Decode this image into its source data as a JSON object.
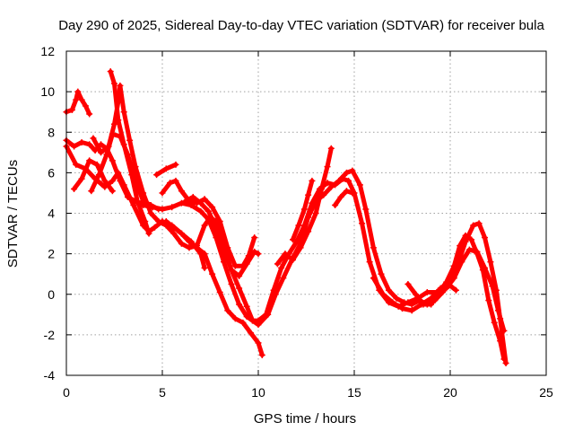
{
  "chart_data": {
    "type": "scatter",
    "title": "Day 290 of 2025, Sidereal Day-to-day VTEC variation (SDTVAR) for receiver bula",
    "xlabel": "GPS time / hours",
    "ylabel": "SDTVAR / TECUs",
    "xlim": [
      0,
      25
    ],
    "ylim": [
      -4,
      12
    ],
    "xticks": [
      0,
      5,
      10,
      15,
      20,
      25
    ],
    "yticks": [
      -4,
      -2,
      0,
      2,
      4,
      6,
      8,
      10,
      12
    ],
    "grid": true,
    "marker": "+",
    "color": "#ff0000",
    "series": [
      {
        "name": "s1",
        "points": [
          [
            0.0,
            9.0
          ],
          [
            0.3,
            9.1
          ],
          [
            0.5,
            9.6
          ],
          [
            0.6,
            10.0
          ],
          [
            0.8,
            9.6
          ],
          [
            1.0,
            9.3
          ],
          [
            1.2,
            8.9
          ]
        ]
      },
      {
        "name": "s2",
        "points": [
          [
            0.0,
            7.6
          ],
          [
            0.4,
            7.3
          ],
          [
            0.8,
            7.5
          ],
          [
            1.2,
            7.4
          ],
          [
            1.5,
            7.1
          ],
          [
            1.8,
            7.4
          ],
          [
            2.1,
            7.2
          ],
          [
            2.4,
            6.6
          ],
          [
            2.8,
            5.6
          ],
          [
            3.2,
            4.8
          ],
          [
            3.6,
            4.6
          ],
          [
            4.0,
            4.4
          ],
          [
            4.5,
            4.3
          ],
          [
            5.0,
            4.2
          ],
          [
            5.5,
            4.3
          ],
          [
            6.0,
            4.5
          ],
          [
            6.5,
            4.4
          ],
          [
            7.0,
            4.1
          ],
          [
            7.4,
            3.7
          ],
          [
            7.8,
            2.8
          ],
          [
            8.2,
            1.6
          ],
          [
            8.6,
            0.5
          ],
          [
            9.0,
            -0.5
          ],
          [
            9.4,
            -1.1
          ],
          [
            9.7,
            -1.3
          ],
          [
            10.0,
            -1.3
          ],
          [
            10.4,
            -1.0
          ],
          [
            10.8,
            0.2
          ],
          [
            11.2,
            1.3
          ],
          [
            11.6,
            2.0
          ],
          [
            12.0,
            2.6
          ],
          [
            12.4,
            3.4
          ],
          [
            12.8,
            4.5
          ],
          [
            13.2,
            5.2
          ],
          [
            13.6,
            5.5
          ],
          [
            14.0,
            5.4
          ],
          [
            14.4,
            5.7
          ],
          [
            14.7,
            5.6
          ],
          [
            15.0,
            5.0
          ],
          [
            15.4,
            3.5
          ],
          [
            15.8,
            1.6
          ],
          [
            16.3,
            0.2
          ],
          [
            16.8,
            -0.4
          ],
          [
            17.3,
            -0.6
          ],
          [
            17.8,
            -0.4
          ],
          [
            18.3,
            -0.2
          ],
          [
            18.8,
            0.1
          ],
          [
            19.3,
            0.1
          ],
          [
            19.8,
            0.3
          ],
          [
            20.2,
            0.8
          ],
          [
            20.6,
            1.6
          ],
          [
            21.0,
            2.2
          ],
          [
            21.4,
            2.1
          ],
          [
            21.8,
            1.3
          ],
          [
            22.2,
            0.4
          ],
          [
            22.5,
            -0.8
          ],
          [
            22.8,
            -1.8
          ]
        ]
      },
      {
        "name": "s3",
        "points": [
          [
            0.0,
            7.3
          ],
          [
            0.5,
            6.4
          ],
          [
            1.0,
            6.2
          ],
          [
            1.5,
            5.7
          ],
          [
            2.0,
            5.3
          ],
          [
            2.4,
            5.6
          ],
          [
            2.7,
            6.0
          ],
          [
            3.0,
            5.4
          ],
          [
            3.5,
            4.4
          ],
          [
            4.0,
            3.4
          ],
          [
            4.3,
            3.1
          ],
          [
            4.6,
            3.3
          ],
          [
            5.0,
            3.6
          ],
          [
            5.5,
            3.4
          ],
          [
            6.0,
            3.0
          ],
          [
            6.5,
            2.6
          ],
          [
            7.0,
            2.0
          ],
          [
            7.2,
            1.3
          ]
        ]
      },
      {
        "name": "s4",
        "points": [
          [
            1.4,
            7.7
          ],
          [
            1.8,
            7.0
          ],
          [
            2.2,
            7.3
          ],
          [
            2.5,
            8.4
          ],
          [
            2.7,
            9.5
          ],
          [
            2.8,
            10.3
          ],
          [
            3.0,
            9.0
          ],
          [
            3.3,
            7.6
          ],
          [
            3.6,
            6.3
          ],
          [
            4.0,
            5.0
          ],
          [
            4.4,
            4.0
          ],
          [
            4.8,
            3.6
          ],
          [
            5.2,
            3.4
          ],
          [
            5.6,
            3.0
          ],
          [
            6.0,
            2.5
          ],
          [
            6.4,
            2.3
          ],
          [
            6.8,
            2.4
          ],
          [
            7.2,
            3.4
          ],
          [
            7.5,
            3.8
          ],
          [
            7.8,
            3.6
          ],
          [
            8.2,
            2.4
          ],
          [
            8.6,
            1.2
          ],
          [
            9.0,
            0.3
          ],
          [
            9.4,
            -0.6
          ],
          [
            9.7,
            -1.3
          ],
          [
            10.0,
            -1.5
          ],
          [
            10.5,
            -1.0
          ],
          [
            10.9,
            0.0
          ],
          [
            11.3,
            0.8
          ],
          [
            11.8,
            1.8
          ],
          [
            12.2,
            2.5
          ],
          [
            12.6,
            3.8
          ],
          [
            13.0,
            4.6
          ],
          [
            13.4,
            4.9
          ],
          [
            13.8,
            5.3
          ],
          [
            14.2,
            5.6
          ],
          [
            14.6,
            6.0
          ],
          [
            14.9,
            6.1
          ],
          [
            15.3,
            5.4
          ],
          [
            15.6,
            4.2
          ],
          [
            16.0,
            2.3
          ],
          [
            16.4,
            1.0
          ],
          [
            16.8,
            0.2
          ],
          [
            17.2,
            -0.2
          ],
          [
            17.6,
            -0.4
          ],
          [
            18.0,
            -0.5
          ],
          [
            18.4,
            -0.3
          ],
          [
            18.8,
            -0.5
          ],
          [
            19.2,
            -0.3
          ],
          [
            19.6,
            0.1
          ],
          [
            20.0,
            0.6
          ],
          [
            20.4,
            1.5
          ],
          [
            20.8,
            2.6
          ],
          [
            21.2,
            3.4
          ],
          [
            21.5,
            3.5
          ],
          [
            21.8,
            2.8
          ],
          [
            22.1,
            1.6
          ],
          [
            22.4,
            0.2
          ],
          [
            22.6,
            -1.2
          ],
          [
            22.9,
            -3.4
          ]
        ]
      },
      {
        "name": "s5",
        "points": [
          [
            2.3,
            11.0
          ],
          [
            2.5,
            10.4
          ],
          [
            2.7,
            8.6
          ],
          [
            3.0,
            7.4
          ],
          [
            3.4,
            5.9
          ],
          [
            3.7,
            4.6
          ],
          [
            4.1,
            3.6
          ],
          [
            4.3,
            3.0
          ]
        ]
      },
      {
        "name": "s6",
        "points": [
          [
            0.4,
            5.2
          ],
          [
            0.8,
            5.7
          ],
          [
            1.2,
            6.6
          ],
          [
            1.6,
            6.4
          ],
          [
            2.0,
            5.6
          ],
          [
            2.4,
            5.1
          ]
        ]
      },
      {
        "name": "s7",
        "points": [
          [
            1.3,
            5.1
          ],
          [
            1.7,
            5.9
          ],
          [
            2.1,
            6.9
          ],
          [
            2.4,
            7.9
          ],
          [
            2.8,
            7.8
          ],
          [
            3.2,
            6.9
          ],
          [
            3.6,
            5.6
          ],
          [
            4.0,
            4.6
          ],
          [
            4.4,
            4.4
          ],
          [
            4.8,
            4.2
          ]
        ]
      },
      {
        "name": "s8",
        "points": [
          [
            4.7,
            5.9
          ],
          [
            5.2,
            6.2
          ],
          [
            5.7,
            6.4
          ]
        ]
      },
      {
        "name": "s9",
        "points": [
          [
            5.0,
            5.0
          ],
          [
            5.4,
            5.5
          ],
          [
            5.7,
            5.6
          ],
          [
            6.0,
            5.1
          ],
          [
            6.4,
            4.6
          ],
          [
            6.8,
            4.5
          ],
          [
            7.2,
            4.7
          ],
          [
            7.6,
            4.3
          ],
          [
            8.0,
            3.6
          ],
          [
            8.4,
            2.3
          ],
          [
            8.8,
            1.4
          ],
          [
            9.2,
            1.4
          ],
          [
            9.5,
            1.9
          ],
          [
            9.8,
            2.8
          ]
        ]
      },
      {
        "name": "s10",
        "points": [
          [
            6.2,
            4.6
          ],
          [
            6.6,
            4.8
          ],
          [
            7.0,
            4.5
          ],
          [
            7.4,
            4.1
          ],
          [
            7.8,
            3.3
          ],
          [
            8.2,
            2.2
          ],
          [
            8.6,
            1.2
          ],
          [
            9.0,
            0.9
          ],
          [
            9.4,
            1.5
          ],
          [
            9.8,
            2.1
          ],
          [
            10.0,
            2.0
          ]
        ]
      },
      {
        "name": "s11",
        "points": [
          [
            5.2,
            3.6
          ],
          [
            5.6,
            3.3
          ],
          [
            6.0,
            3.0
          ],
          [
            6.4,
            2.6
          ],
          [
            6.8,
            2.3
          ],
          [
            7.2,
            2.0
          ],
          [
            7.6,
            1.0
          ],
          [
            8.0,
            0.1
          ],
          [
            8.4,
            -0.8
          ],
          [
            8.8,
            -1.2
          ],
          [
            9.2,
            -1.4
          ],
          [
            9.6,
            -1.9
          ],
          [
            10.0,
            -2.4
          ],
          [
            10.2,
            -3.0
          ]
        ]
      },
      {
        "name": "s12",
        "points": [
          [
            11.0,
            1.5
          ],
          [
            11.4,
            2.0
          ],
          [
            11.8,
            1.7
          ],
          [
            12.2,
            2.3
          ],
          [
            12.6,
            3.1
          ],
          [
            13.0,
            4.0
          ],
          [
            13.3,
            5.2
          ],
          [
            13.6,
            6.3
          ],
          [
            13.8,
            7.2
          ]
        ]
      },
      {
        "name": "s13",
        "points": [
          [
            11.8,
            2.7
          ],
          [
            12.1,
            3.4
          ],
          [
            12.4,
            4.2
          ],
          [
            12.6,
            4.9
          ],
          [
            12.8,
            5.6
          ]
        ]
      },
      {
        "name": "s14",
        "points": [
          [
            14.0,
            4.4
          ],
          [
            14.3,
            4.8
          ],
          [
            14.6,
            5.1
          ],
          [
            14.9,
            5.0
          ]
        ]
      },
      {
        "name": "s15",
        "points": [
          [
            16.0,
            0.8
          ],
          [
            16.5,
            0.0
          ],
          [
            17.0,
            -0.4
          ],
          [
            17.5,
            -0.7
          ],
          [
            18.0,
            -0.8
          ],
          [
            18.5,
            -0.5
          ],
          [
            19.0,
            -0.2
          ],
          [
            19.5,
            0.3
          ],
          [
            19.9,
            0.5
          ],
          [
            20.3,
            0.2
          ]
        ]
      },
      {
        "name": "s16",
        "points": [
          [
            17.8,
            0.5
          ],
          [
            18.2,
            0.0
          ],
          [
            18.6,
            -0.5
          ],
          [
            19.0,
            -0.5
          ],
          [
            19.4,
            0.1
          ],
          [
            19.8,
            0.6
          ],
          [
            20.2,
            1.4
          ],
          [
            20.5,
            2.4
          ],
          [
            20.8,
            2.9
          ],
          [
            21.1,
            2.7
          ],
          [
            21.4,
            2.0
          ],
          [
            21.7,
            1.2
          ],
          [
            22.0,
            -0.3
          ],
          [
            22.3,
            -1.4
          ],
          [
            22.6,
            -2.3
          ],
          [
            22.8,
            -3.2
          ]
        ]
      }
    ]
  }
}
